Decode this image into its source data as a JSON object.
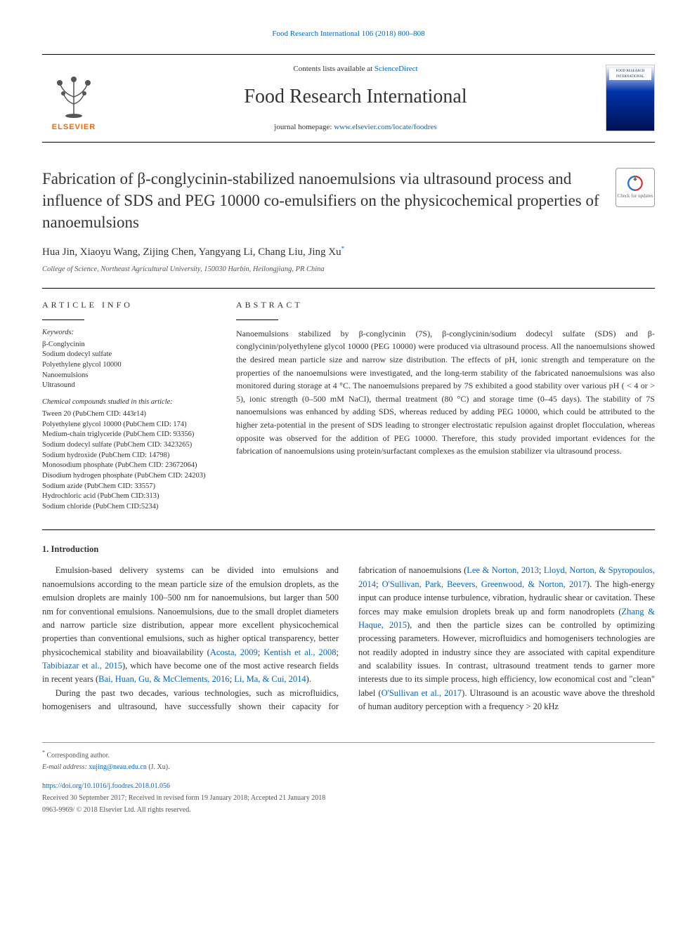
{
  "header": {
    "top_link": "Food Research International 106 (2018) 800–808",
    "contents_prefix": "Contents lists available at ",
    "contents_link": "ScienceDirect",
    "journal_name": "Food Research International",
    "homepage_prefix": "journal homepage: ",
    "homepage_link": "www.elsevier.com/locate/foodres",
    "elsevier": "ELSEVIER",
    "cover_text": "FOOD RESEARCH INTERNATIONAL",
    "updates_text": "Check for updates"
  },
  "article": {
    "title": "Fabrication of β-conglycinin-stabilized nanoemulsions via ultrasound process and influence of SDS and PEG 10000 co-emulsifiers on the physicochemical properties of nanoemulsions",
    "authors": "Hua Jin, Xiaoyu Wang, Zijing Chen, Yangyang Li, Chang Liu, Jing Xu",
    "corresponding_mark": "*",
    "affiliation": "College of Science, Northeast Agricultural University, 150030 Harbin, Heilongjiang, PR China"
  },
  "info": {
    "heading": "ARTICLE INFO",
    "keywords_label": "Keywords:",
    "keywords": [
      "β-Conglycinin",
      "Sodium dodecyl sulfate",
      "Polyethylene glycol 10000",
      "Nanoemulsions",
      "Ultrasound"
    ],
    "chem_label": "Chemical compounds studied in this article:",
    "compounds": [
      "Tween 20 (PubChem CID: 443r14)",
      "Polyethylene glycol 10000 (PubChem CID: 174)",
      "Medium-chain triglyceride (PubChem CID: 93356)",
      "Sodium dodecyl sulfate (PubChem CID: 3423265)",
      "Sodium hydroxide (PubChem CID: 14798)",
      "Monosodium phosphate (PubChem CID: 23672064)",
      "Disodium hydrogen phosphate (PubChem CID: 24203)",
      "Sodium azide (PubChem CID: 33557)",
      "Hydrochloric acid (PubChem CID:313)",
      "Sodium chloride (PubChem CID:5234)"
    ]
  },
  "abstract": {
    "heading": "ABSTRACT",
    "text": "Nanoemulsions stabilized by β-conglycinin (7S), β-conglycinin/sodium dodecyl sulfate (SDS) and β-conglycinin/polyethylene glycol 10000 (PEG 10000) were produced via ultrasound process. All the nanoemulsions showed the desired mean particle size and narrow size distribution. The effects of pH, ionic strength and temperature on the properties of the nanoemulsions were investigated, and the long-term stability of the fabricated nanoemulsions was also monitored during storage at 4 °C. The nanoemulsions prepared by 7S exhibited a good stability over various pH ( < 4 or > 5), ionic strength (0–500 mM NaCl), thermal treatment (80 °C) and storage time (0–45 days). The stability of 7S nanoemulsions was enhanced by adding SDS, whereas reduced by adding PEG 10000, which could be attributed to the higher zeta-potential in the present of SDS leading to stronger electrostatic repulsion against droplet flocculation, whereas opposite was observed for the addition of PEG 10000. Therefore, this study provided important evidences for the fabrication of nanoemulsions using protein/surfactant complexes as the emulsion stabilizer via ultrasound process."
  },
  "body": {
    "intro_heading": "1. Introduction",
    "p1_a": "Emulsion-based delivery systems can be divided into emulsions and nanoemulsions according to the mean particle size of the emulsion droplets, as the emulsion droplets are mainly 100–500 nm for nanoemulsions, but larger than 500 nm for conventional emulsions. Nanoemulsions, due to the small droplet diameters and narrow particle size distribution, appear more excellent physicochemical properties than conventional emulsions, such as higher optical transparency, better physicochemical stability and bioavailability (",
    "cite1": "Acosta, 2009",
    "p1_b": "; ",
    "cite2": "Kentish et al., 2008",
    "p1_c": "; ",
    "cite3": "Tabibiazar et al., 2015",
    "p1_d": "), which have become one of the most active research fields in recent years (",
    "cite4": "Bai, Huan, Gu, & McClements, 2016",
    "p1_e": "; ",
    "cite5": "Li, Ma, & Cui, 2014",
    "p1_f": ").",
    "p2_a": "During the past two decades, various technologies, such as microfluidics, homogenisers and ultrasound, have successfully shown their capacity for fabrication of nanoemulsions (",
    "cite6": "Lee & Norton, 2013",
    "p2_b": "; ",
    "cite7": "Lloyd, Norton, & Spyropoulos, 2014",
    "p2_c": "; ",
    "cite8": "O'Sullivan, Park, Beevers, Greenwood, & Norton, 2017",
    "p2_d": "). The high-energy input can produce intense turbulence, vibration, hydraulic shear or cavitation. These forces may make emulsion droplets break up and form nanodroplets (",
    "cite9": "Zhang & Haque, 2015",
    "p2_e": "), and then the particle sizes can be controlled by optimizing processing parameters. However, microfluidics and homogenisers technologies are not readily adopted in industry since they are associated with capital expenditure and scalability issues. In contrast, ultrasound treatment tends to garner more interests due to its simple process, high efficiency, low economical cost and \"clean\" label (",
    "cite10": "O'Sullivan et al., 2017",
    "p2_f": "). Ultrasound is an acoustic wave above the threshold of human auditory perception with a frequency > 20 kHz"
  },
  "footer": {
    "corresp_label": "Corresponding author.",
    "email_label": "E-mail address: ",
    "email": "xujing@neau.edu.cn",
    "email_suffix": " (J. Xu).",
    "doi": "https://doi.org/10.1016/j.foodres.2018.01.056",
    "received": "Received 30 September 2017; Received in revised form 19 January 2018; Accepted 21 January 2018",
    "copyright": "0963-9969/ © 2018 Elsevier Ltd. All rights reserved."
  },
  "colors": {
    "link": "#0066cc",
    "elsevier_orange": "#ff6600",
    "text": "#333333",
    "muted": "#555555"
  }
}
